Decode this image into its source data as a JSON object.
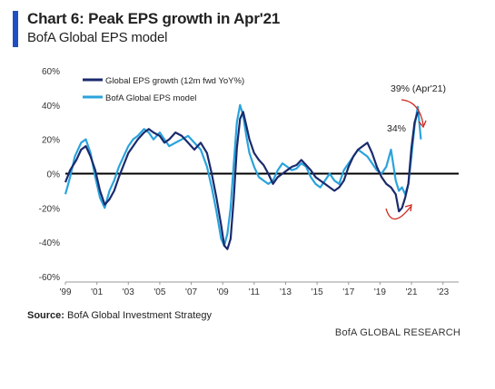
{
  "title": "Chart 6: Peak EPS growth in Apr'21",
  "subtitle": "BofA Global EPS model",
  "source_label": "Source:",
  "source_text": "BofA Global Investment Strategy",
  "brand": "BofA GLOBAL RESEARCH",
  "colors": {
    "accent": "#1f4fc4",
    "actual": "#1a2a6c",
    "model": "#2aa3dc",
    "annotation_arrow": "#d0251b",
    "zero_line": "#000000"
  },
  "chart_data": {
    "type": "line",
    "ylim": [
      -60,
      60
    ],
    "xlim": [
      1999,
      2024
    ],
    "yticks": [
      60,
      40,
      20,
      0,
      -20,
      -40,
      -60
    ],
    "ytick_labels": [
      "60%",
      "40%",
      "20%",
      "0%",
      "-20%",
      "-40%",
      "-60%"
    ],
    "xticks": [
      1999,
      2001,
      2003,
      2005,
      2007,
      2009,
      2011,
      2013,
      2015,
      2017,
      2019,
      2021,
      2023
    ],
    "xtick_labels": [
      "'99",
      "'01",
      "'03",
      "'05",
      "'07",
      "'09",
      "'11",
      "'13",
      "'15",
      "'17",
      "'19",
      "'21",
      "'23"
    ],
    "legend_position": "top-left",
    "series": [
      {
        "name": "Global EPS growth (12m fwd YoY%)",
        "x": [
          1999.0,
          1999.3,
          1999.7,
          2000.0,
          2000.3,
          2000.6,
          2000.9,
          2001.2,
          2001.5,
          2001.8,
          2002.1,
          2002.4,
          2002.7,
          2003.0,
          2003.3,
          2003.6,
          2004.0,
          2004.3,
          2004.6,
          2005.0,
          2005.3,
          2005.6,
          2006.0,
          2006.4,
          2006.8,
          2007.2,
          2007.6,
          2008.0,
          2008.3,
          2008.6,
          2008.9,
          2009.1,
          2009.3,
          2009.5,
          2009.7,
          2009.9,
          2010.1,
          2010.3,
          2010.5,
          2010.7,
          2011.0,
          2011.3,
          2011.6,
          2011.9,
          2012.2,
          2012.5,
          2012.8,
          2013.1,
          2013.4,
          2013.7,
          2014.0,
          2014.3,
          2014.6,
          2014.9,
          2015.2,
          2015.5,
          2015.8,
          2016.1,
          2016.4,
          2016.7,
          2017.0,
          2017.3,
          2017.6,
          2017.9,
          2018.2,
          2018.5,
          2018.8,
          2019.1,
          2019.4,
          2019.7,
          2020.0,
          2020.2,
          2020.4,
          2020.6,
          2020.8,
          2021.0,
          2021.2,
          2021.4
        ],
        "values": [
          -5,
          2,
          8,
          14,
          16,
          10,
          2,
          -10,
          -18,
          -15,
          -10,
          -2,
          5,
          12,
          16,
          20,
          24,
          26,
          24,
          22,
          18,
          20,
          24,
          22,
          18,
          14,
          18,
          12,
          0,
          -14,
          -30,
          -42,
          -44,
          -38,
          -15,
          15,
          32,
          36,
          28,
          20,
          12,
          8,
          5,
          0,
          -6,
          -2,
          0,
          2,
          4,
          5,
          8,
          5,
          2,
          -2,
          -4,
          -6,
          -8,
          -10,
          -8,
          -4,
          4,
          10,
          14,
          16,
          18,
          12,
          4,
          -2,
          -6,
          -8,
          -12,
          -22,
          -20,
          -14,
          -6,
          15,
          30,
          36
        ]
      },
      {
        "name": "BofA Global EPS model",
        "x": [
          1999.0,
          1999.3,
          1999.6,
          2000.0,
          2000.3,
          2000.6,
          2000.9,
          2001.2,
          2001.5,
          2001.8,
          2002.1,
          2002.4,
          2002.7,
          2003.0,
          2003.3,
          2003.6,
          2004.0,
          2004.3,
          2004.6,
          2005.0,
          2005.3,
          2005.6,
          2006.0,
          2006.4,
          2006.8,
          2007.2,
          2007.6,
          2008.0,
          2008.3,
          2008.6,
          2008.9,
          2009.1,
          2009.3,
          2009.5,
          2009.7,
          2009.9,
          2010.1,
          2010.3,
          2010.5,
          2010.7,
          2011.0,
          2011.3,
          2011.6,
          2011.9,
          2012.2,
          2012.5,
          2012.8,
          2013.1,
          2013.4,
          2013.7,
          2014.0,
          2014.3,
          2014.6,
          2014.9,
          2015.2,
          2015.5,
          2015.8,
          2016.1,
          2016.4,
          2016.7,
          2017.0,
          2017.3,
          2017.6,
          2017.9,
          2018.2,
          2018.5,
          2018.8,
          2019.1,
          2019.4,
          2019.7,
          2020.0,
          2020.2,
          2020.4,
          2020.6,
          2020.8,
          2021.0,
          2021.2,
          2021.4,
          2021.6
        ],
        "values": [
          -12,
          -2,
          10,
          18,
          20,
          12,
          -2,
          -14,
          -20,
          -10,
          -4,
          4,
          10,
          16,
          20,
          22,
          26,
          24,
          20,
          24,
          20,
          16,
          18,
          20,
          22,
          18,
          14,
          4,
          -8,
          -22,
          -38,
          -42,
          -35,
          -20,
          5,
          30,
          40,
          34,
          22,
          12,
          4,
          -2,
          -4,
          -6,
          -4,
          2,
          6,
          4,
          2,
          3,
          6,
          4,
          -2,
          -6,
          -8,
          -4,
          0,
          -4,
          -6,
          2,
          6,
          10,
          14,
          12,
          10,
          6,
          2,
          0,
          4,
          14,
          -4,
          -10,
          -8,
          -12,
          -6,
          10,
          28,
          39,
          20
        ]
      }
    ],
    "annotations": [
      {
        "text": "39% (Apr'21)"
      },
      {
        "text": "34%"
      }
    ]
  }
}
